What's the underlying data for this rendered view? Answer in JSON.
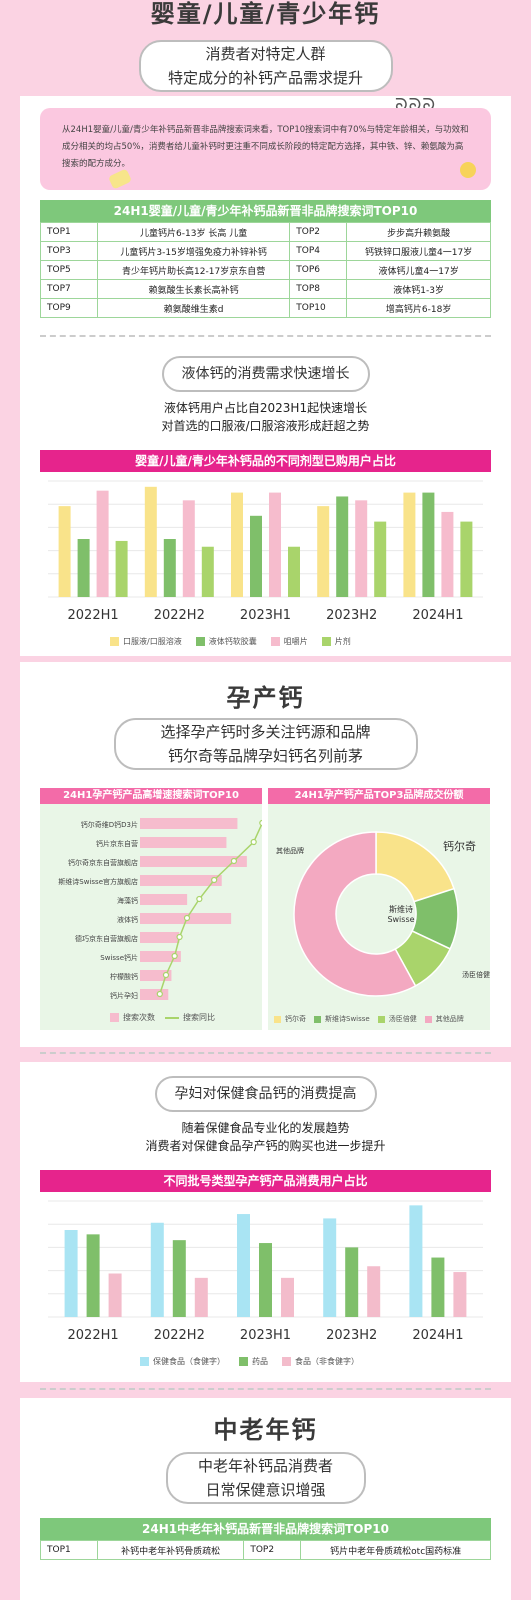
{
  "section_kids": {
    "title": "婴童/儿童/青少年钙",
    "pill_line1": "消费者对特定人群",
    "pill_line2": "特定成分的补钙产品需求提升",
    "note": "从24H1婴童/儿童/青少年补钙品新晋非品牌搜索词来看，TOP10搜索词中有70%与特定年龄相关，与功效和成分相关的均占50%，消费者给儿童补钙时更注重不同成长阶段的特定配方选择，其中铁、锌、赖氨酸为高搜索的配方成分。",
    "table": {
      "title": "24H1婴童/儿童/青少年补钙品新晋非品牌搜索词TOP10",
      "rows": [
        [
          "TOP1",
          "儿童钙片6-13岁 长高 儿童",
          "TOP2",
          "步步高升赖氨酸"
        ],
        [
          "TOP3",
          "儿童钙片3-15岁增强免疫力补锌补钙",
          "TOP4",
          "钙铁锌口服液儿童4一17岁"
        ],
        [
          "TOP5",
          "青少年钙片助长高12-17岁京东自营",
          "TOP6",
          "液体钙儿童4一17岁"
        ],
        [
          "TOP7",
          "赖氨酸生长素长高补钙",
          "TOP8",
          "液体钙1-3岁"
        ],
        [
          "TOP9",
          "赖氨酸维生素d",
          "TOP10",
          "增高钙片6-18岁"
        ]
      ]
    },
    "pill2": "液体钙的消费需求快速增长",
    "sub_line1": "液体钙用户占比自2023H1起快速增长",
    "sub_line2": "对首选的口服液/口服溶液形成赶超之势"
  },
  "chart1_title": "婴童/儿童/青少年补钙品的不同剂型已购用户占比",
  "chart1_legend": [
    "口服液/口服溶液",
    "液体钙软胶囊",
    "咀嚼片",
    "片剂"
  ],
  "section_preg": {
    "title": "孕产钙",
    "pill_line1": "选择孕产钙时多关注钙源和品牌",
    "pill_line2": "钙尔奇等品牌孕妇钙名列前茅",
    "card_left_title": "24H1孕产钙产品高增速搜索词TOP10",
    "card_left_legend": [
      "搜索次数",
      "搜索同比"
    ],
    "card_right_title": "24H1孕产钙产品TOP3品牌成交份额",
    "pie_labels": {
      "a": "钙尔奇",
      "b": "斯维诗 Swisse",
      "c": "汤臣倍健",
      "d": "其他品牌"
    },
    "pie_legend": [
      "钙尔奇",
      "斯维诗Swisse",
      "汤臣倍健",
      "其他品牌"
    ],
    "pill2": "孕妇对保健食品钙的消费提高",
    "sub_line1": "随着保健食品专业化的发展趋势",
    "sub_line2": "消费者对保健食品孕产钙的购买也进一步提升"
  },
  "chart3_title": "不同批号类型孕产钙产品消费用户占比",
  "chart3_legend": [
    "保健食品（食健字）",
    "药品",
    "食品（非食健字）"
  ],
  "section_elder": {
    "title": "中老年钙",
    "pill_line1": "中老年补钙品消费者",
    "pill_line2": "日常保健意识增强",
    "table_title": "24H1中老年补钙品新晋非品牌搜索词TOP10",
    "rows": [
      [
        "TOP1",
        "补钙中老年补钙骨质疏松",
        "TOP2",
        "钙片中老年骨质疏松otc国药标准"
      ]
    ]
  },
  "colors": {
    "yellow": "#f9e38a",
    "green": "#7fbf6a",
    "pink": "#f6bccd",
    "lime": "#a9d46b",
    "cyan": "#a9e4f3",
    "gray": "#f3bccb",
    "magenta": "#e6248c"
  },
  "chart_data": [
    {
      "type": "bar",
      "categories": [
        "2022H1",
        "2022H2",
        "2023H1",
        "2023H2",
        "2024H1"
      ],
      "series": [
        {
          "name": "口服液/口服溶液",
          "values": [
            47,
            57,
            54,
            47,
            54
          ]
        },
        {
          "name": "液体钙软胶囊",
          "values": [
            30,
            30,
            42,
            52,
            54
          ]
        },
        {
          "name": "咀嚼片",
          "values": [
            55,
            50,
            54,
            50,
            44
          ]
        },
        {
          "name": "片剂",
          "values": [
            29,
            26,
            26,
            39,
            39
          ]
        }
      ],
      "ylim": [
        0,
        60
      ]
    },
    {
      "type": "bar",
      "categories": [
        "钙尔奇维D钙D3片",
        "钙片京东自营",
        "钙尔奇京东自营旗舰店",
        "斯维诗Swisse官方旗舰店",
        "海藻钙",
        "液体钙",
        "德巧京东自营旗舰店",
        "Swisse钙片",
        "柠檬酸钙",
        "钙片孕妇"
      ],
      "series": [
        {
          "name": "搜索次数",
          "values": [
            62,
            55,
            68,
            52,
            30,
            58,
            25,
            26,
            20,
            18
          ]
        },
        {
          "name": "搜索同比",
          "values": [
            95,
            88,
            72,
            56,
            44,
            34,
            28,
            24,
            17,
            12
          ]
        }
      ]
    },
    {
      "type": "pie",
      "categories": [
        "钙尔奇",
        "斯维诗Swisse",
        "汤臣倍健",
        "其他品牌"
      ],
      "values": [
        20,
        12,
        10,
        58
      ]
    },
    {
      "type": "bar",
      "categories": [
        "2022H1",
        "2022H2",
        "2023H1",
        "2023H2",
        "2024H1"
      ],
      "series": [
        {
          "name": "保健食品（食健字）",
          "values": [
            60,
            65,
            71,
            68,
            77
          ]
        },
        {
          "name": "药品",
          "values": [
            57,
            53,
            51,
            48,
            41
          ]
        },
        {
          "name": "食品（非食健字）",
          "values": [
            30,
            27,
            27,
            35,
            31
          ]
        }
      ],
      "ylim": [
        0,
        80
      ]
    }
  ]
}
